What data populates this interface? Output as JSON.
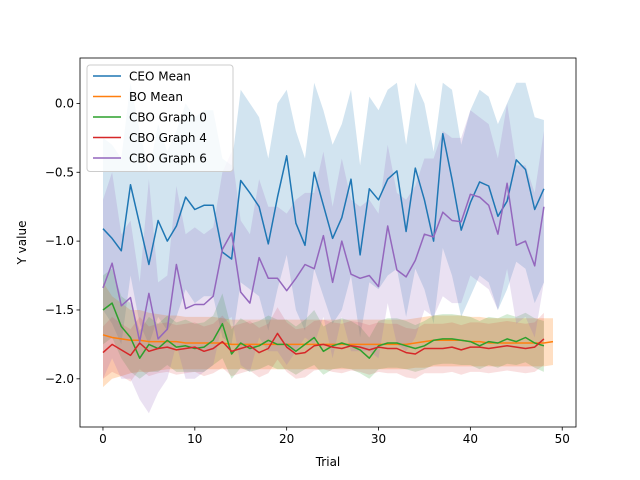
{
  "chart_data": {
    "type": "line",
    "title": "",
    "xlabel": "Trial",
    "ylabel": "Y value",
    "xlim": [
      -2.5,
      51.5
    ],
    "ylim": [
      -2.35,
      0.33
    ],
    "xticks": [
      0,
      10,
      20,
      30,
      40,
      50
    ],
    "yticks": [
      -2.0,
      -1.5,
      -1.0,
      -0.5,
      0.0
    ],
    "xtick_labels": [
      "0",
      "10",
      "20",
      "30",
      "40",
      "50"
    ],
    "ytick_labels": [
      "−2.0",
      "−1.5",
      "−1.0",
      "−0.5",
      "0.0"
    ],
    "grid": false,
    "legend_position": "upper-left",
    "series": [
      {
        "name": "CEO Mean",
        "color": "#1f77b4",
        "band_opacity": 0.2,
        "x": [
          0,
          1,
          2,
          3,
          4,
          5,
          6,
          7,
          8,
          9,
          10,
          11,
          12,
          13,
          14,
          15,
          16,
          17,
          18,
          19,
          20,
          21,
          22,
          23,
          24,
          25,
          26,
          27,
          28,
          29,
          30,
          31,
          32,
          33,
          34,
          35,
          36,
          37,
          38,
          39,
          40,
          41,
          42,
          43,
          44,
          45,
          46,
          47,
          48
        ],
        "y": [
          -0.91,
          -0.98,
          -1.07,
          -0.59,
          -0.88,
          -1.17,
          -0.85,
          -1.0,
          -0.89,
          -0.68,
          -0.77,
          -0.74,
          -0.74,
          -1.08,
          -1.13,
          -0.56,
          -0.65,
          -0.75,
          -1.02,
          -0.68,
          -0.38,
          -0.87,
          -1.03,
          -0.5,
          -0.74,
          -0.98,
          -0.83,
          -0.55,
          -1.1,
          -0.62,
          -0.7,
          -0.55,
          -0.49,
          -0.93,
          -0.47,
          -0.7,
          -1.0,
          -0.22,
          -0.55,
          -0.92,
          -0.72,
          -0.57,
          -0.6,
          -0.82,
          -0.71,
          -0.41,
          -0.48,
          -0.77,
          -0.62
        ],
        "lower": [
          -1.5,
          -1.6,
          -1.75,
          -1.25,
          -1.6,
          -1.75,
          -1.55,
          -1.65,
          -1.55,
          -1.35,
          -1.45,
          -1.4,
          -1.4,
          -1.7,
          -1.75,
          -1.3,
          -1.35,
          -1.4,
          -1.65,
          -1.35,
          -1.1,
          -1.5,
          -1.65,
          -1.2,
          -1.4,
          -1.6,
          -1.5,
          -1.25,
          -1.7,
          -1.3,
          -1.35,
          -1.25,
          -1.2,
          -1.55,
          -1.2,
          -1.35,
          -1.6,
          -1.05,
          -1.25,
          -1.55,
          -1.4,
          -1.25,
          -1.3,
          -1.5,
          -1.35,
          -1.15,
          -1.2,
          -1.45,
          -1.3
        ],
        "upper": [
          -0.25,
          -0.3,
          -0.4,
          0.15,
          -0.2,
          -0.5,
          -0.15,
          -0.35,
          -0.2,
          0.0,
          -0.1,
          -0.05,
          -0.05,
          -0.4,
          -0.45,
          0.1,
          0.0,
          -0.1,
          -0.4,
          0.0,
          0.1,
          -0.2,
          -0.4,
          0.15,
          -0.05,
          -0.3,
          -0.15,
          0.1,
          -0.45,
          0.05,
          -0.05,
          0.1,
          0.15,
          -0.3,
          0.15,
          0.0,
          -0.35,
          0.15,
          0.1,
          -0.3,
          -0.05,
          0.1,
          0.05,
          -0.15,
          0.0,
          0.15,
          0.15,
          -0.1,
          -0.12
        ]
      },
      {
        "name": "BO Mean",
        "color": "#ff7f0e",
        "band_opacity": 0.25,
        "x": [
          0,
          1,
          2,
          3,
          4,
          5,
          6,
          7,
          8,
          9,
          10,
          11,
          12,
          13,
          14,
          15,
          16,
          17,
          18,
          19,
          20,
          21,
          22,
          23,
          24,
          25,
          26,
          27,
          28,
          29,
          30,
          31,
          32,
          33,
          34,
          35,
          36,
          37,
          38,
          39,
          40,
          41,
          42,
          43,
          44,
          45,
          46,
          47,
          48,
          49
        ],
        "y": [
          -1.68,
          -1.7,
          -1.71,
          -1.72,
          -1.72,
          -1.73,
          -1.73,
          -1.73,
          -1.73,
          -1.74,
          -1.74,
          -1.74,
          -1.74,
          -1.74,
          -1.75,
          -1.75,
          -1.75,
          -1.75,
          -1.75,
          -1.75,
          -1.75,
          -1.75,
          -1.75,
          -1.75,
          -1.75,
          -1.75,
          -1.75,
          -1.75,
          -1.75,
          -1.75,
          -1.75,
          -1.75,
          -1.75,
          -1.75,
          -1.74,
          -1.73,
          -1.72,
          -1.72,
          -1.72,
          -1.72,
          -1.73,
          -1.73,
          -1.74,
          -1.74,
          -1.74,
          -1.74,
          -1.74,
          -1.74,
          -1.74,
          -1.73
        ],
        "lower": [
          -2.06,
          -2.0,
          -1.98,
          -1.96,
          -1.95,
          -1.95,
          -1.94,
          -1.93,
          -1.93,
          -1.93,
          -1.93,
          -1.93,
          -1.93,
          -1.93,
          -1.93,
          -1.93,
          -1.93,
          -1.93,
          -1.93,
          -1.93,
          -1.93,
          -1.93,
          -1.93,
          -1.93,
          -1.93,
          -1.93,
          -1.93,
          -1.93,
          -1.93,
          -1.93,
          -1.93,
          -1.93,
          -1.93,
          -1.93,
          -1.92,
          -1.92,
          -1.91,
          -1.91,
          -1.91,
          -1.91,
          -1.91,
          -1.91,
          -1.91,
          -1.91,
          -1.91,
          -1.91,
          -1.91,
          -1.91,
          -1.91,
          -1.9
        ],
        "upper": [
          -1.3,
          -1.4,
          -1.45,
          -1.5,
          -1.5,
          -1.52,
          -1.53,
          -1.54,
          -1.54,
          -1.55,
          -1.55,
          -1.55,
          -1.55,
          -1.56,
          -1.57,
          -1.57,
          -1.57,
          -1.57,
          -1.57,
          -1.57,
          -1.57,
          -1.57,
          -1.57,
          -1.57,
          -1.57,
          -1.57,
          -1.57,
          -1.57,
          -1.57,
          -1.57,
          -1.57,
          -1.57,
          -1.57,
          -1.57,
          -1.56,
          -1.55,
          -1.54,
          -1.54,
          -1.54,
          -1.54,
          -1.55,
          -1.55,
          -1.56,
          -1.56,
          -1.56,
          -1.56,
          -1.56,
          -1.56,
          -1.56,
          -1.56
        ]
      },
      {
        "name": "CBO Graph 0",
        "color": "#2ca02c",
        "band_opacity": 0.2,
        "x": [
          0,
          1,
          2,
          3,
          4,
          5,
          6,
          7,
          8,
          9,
          10,
          11,
          12,
          13,
          14,
          15,
          16,
          17,
          18,
          19,
          20,
          21,
          22,
          23,
          24,
          25,
          26,
          27,
          28,
          29,
          30,
          31,
          32,
          33,
          34,
          35,
          36,
          37,
          38,
          39,
          40,
          41,
          42,
          43,
          44,
          45,
          46,
          47,
          48
        ],
        "y": [
          -1.5,
          -1.45,
          -1.62,
          -1.7,
          -1.85,
          -1.75,
          -1.78,
          -1.72,
          -1.77,
          -1.76,
          -1.78,
          -1.77,
          -1.72,
          -1.6,
          -1.82,
          -1.74,
          -1.78,
          -1.76,
          -1.72,
          -1.75,
          -1.75,
          -1.8,
          -1.75,
          -1.7,
          -1.8,
          -1.76,
          -1.74,
          -1.76,
          -1.79,
          -1.85,
          -1.76,
          -1.74,
          -1.74,
          -1.76,
          -1.78,
          -1.76,
          -1.72,
          -1.71,
          -1.71,
          -1.72,
          -1.73,
          -1.76,
          -1.73,
          -1.74,
          -1.71,
          -1.73,
          -1.7,
          -1.74,
          -1.76
        ],
        "lower": [
          -1.75,
          -1.7,
          -1.85,
          -1.95,
          -2.0,
          -1.95,
          -1.95,
          -1.9,
          -1.95,
          -1.95,
          -1.95,
          -1.95,
          -1.9,
          -1.85,
          -2.0,
          -1.92,
          -1.95,
          -1.93,
          -1.9,
          -1.93,
          -1.93,
          -1.97,
          -1.93,
          -1.9,
          -1.97,
          -1.93,
          -1.92,
          -1.93,
          -1.96,
          -2.0,
          -1.93,
          -1.92,
          -1.92,
          -1.93,
          -1.95,
          -1.93,
          -1.9,
          -1.89,
          -1.89,
          -1.9,
          -1.9,
          -1.93,
          -1.9,
          -1.92,
          -1.89,
          -1.9,
          -1.88,
          -1.92,
          -1.95
        ],
        "upper": [
          -1.25,
          -1.2,
          -1.4,
          -1.45,
          -1.65,
          -1.55,
          -1.6,
          -1.54,
          -1.59,
          -1.57,
          -1.6,
          -1.59,
          -1.54,
          -1.38,
          -1.64,
          -1.56,
          -1.6,
          -1.58,
          -1.54,
          -1.57,
          -1.57,
          -1.62,
          -1.57,
          -1.5,
          -1.62,
          -1.58,
          -1.56,
          -1.58,
          -1.62,
          -1.7,
          -1.58,
          -1.56,
          -1.56,
          -1.58,
          -1.61,
          -1.58,
          -1.54,
          -1.53,
          -1.53,
          -1.54,
          -1.55,
          -1.58,
          -1.55,
          -1.56,
          -1.53,
          -1.55,
          -1.52,
          -1.56,
          -1.58
        ]
      },
      {
        "name": "CBO Graph 4",
        "color": "#d62728",
        "band_opacity": 0.15,
        "x": [
          0,
          1,
          2,
          3,
          4,
          5,
          6,
          7,
          8,
          9,
          10,
          11,
          12,
          13,
          14,
          15,
          16,
          17,
          18,
          19,
          20,
          21,
          22,
          23,
          24,
          25,
          26,
          27,
          28,
          29,
          30,
          31,
          32,
          33,
          34,
          35,
          36,
          37,
          38,
          39,
          40,
          41,
          42,
          43,
          44,
          45,
          46,
          47,
          48
        ],
        "y": [
          -1.81,
          -1.75,
          -1.79,
          -1.83,
          -1.74,
          -1.8,
          -1.78,
          -1.77,
          -1.79,
          -1.78,
          -1.77,
          -1.8,
          -1.78,
          -1.73,
          -1.8,
          -1.78,
          -1.76,
          -1.81,
          -1.78,
          -1.67,
          -1.77,
          -1.82,
          -1.81,
          -1.76,
          -1.75,
          -1.77,
          -1.78,
          -1.76,
          -1.77,
          -1.79,
          -1.77,
          -1.78,
          -1.78,
          -1.81,
          -1.82,
          -1.78,
          -1.78,
          -1.78,
          -1.77,
          -1.79,
          -1.77,
          -1.77,
          -1.78,
          -1.77,
          -1.76,
          -1.77,
          -1.78,
          -1.77,
          -1.71
        ],
        "lower": [
          -2.0,
          -1.95,
          -1.98,
          -2.02,
          -1.93,
          -1.98,
          -1.96,
          -1.95,
          -1.97,
          -1.96,
          -1.95,
          -1.98,
          -1.96,
          -1.92,
          -1.98,
          -1.96,
          -1.94,
          -1.99,
          -1.96,
          -1.86,
          -1.95,
          -2.0,
          -1.99,
          -1.94,
          -1.93,
          -1.95,
          -1.96,
          -1.94,
          -1.95,
          -1.97,
          -1.95,
          -1.96,
          -1.96,
          -1.99,
          -2.0,
          -1.96,
          -1.96,
          -1.96,
          -1.95,
          -1.97,
          -1.95,
          -1.95,
          -1.96,
          -1.95,
          -1.94,
          -1.95,
          -1.96,
          -1.95,
          -1.9
        ],
        "upper": [
          -1.62,
          -1.55,
          -1.6,
          -1.64,
          -1.55,
          -1.62,
          -1.6,
          -1.59,
          -1.61,
          -1.6,
          -1.59,
          -1.62,
          -1.6,
          -1.54,
          -1.62,
          -1.6,
          -1.58,
          -1.63,
          -1.6,
          -1.48,
          -1.59,
          -1.64,
          -1.63,
          -1.58,
          -1.57,
          -1.59,
          -1.6,
          -1.58,
          -1.59,
          -1.61,
          -1.59,
          -1.6,
          -1.6,
          -1.63,
          -1.64,
          -1.6,
          -1.6,
          -1.6,
          -1.59,
          -1.61,
          -1.59,
          -1.59,
          -1.6,
          -1.59,
          -1.58,
          -1.59,
          -1.6,
          -1.59,
          -1.52
        ]
      },
      {
        "name": "CBO Graph 6",
        "color": "#9467bd",
        "band_opacity": 0.2,
        "x": [
          0,
          1,
          2,
          3,
          4,
          5,
          6,
          7,
          8,
          9,
          10,
          11,
          12,
          13,
          14,
          15,
          16,
          17,
          18,
          19,
          20,
          21,
          22,
          23,
          24,
          25,
          26,
          27,
          28,
          29,
          30,
          31,
          32,
          33,
          34,
          35,
          36,
          37,
          38,
          39,
          40,
          41,
          42,
          43,
          44,
          45,
          46,
          47,
          48
        ],
        "y": [
          -1.34,
          -1.16,
          -1.47,
          -1.41,
          -1.73,
          -1.38,
          -1.71,
          -1.64,
          -1.17,
          -1.49,
          -1.46,
          -1.46,
          -1.4,
          -1.06,
          -0.94,
          -1.37,
          -1.45,
          -1.12,
          -1.27,
          -1.27,
          -1.36,
          -1.27,
          -1.17,
          -1.2,
          -0.96,
          -1.3,
          -1.0,
          -1.24,
          -1.27,
          -1.25,
          -1.33,
          -0.89,
          -1.21,
          -1.26,
          -1.14,
          -0.95,
          -0.97,
          -0.79,
          -0.85,
          -0.86,
          -0.66,
          -0.68,
          -0.74,
          -0.95,
          -0.58,
          -1.03,
          -1.0,
          -1.18,
          -0.75
        ],
        "lower": [
          -2.0,
          -1.85,
          -2.0,
          -2.0,
          -2.15,
          -2.25,
          -2.1,
          -2.0,
          -1.75,
          -2.0,
          -2.0,
          -1.95,
          -1.9,
          -1.6,
          -1.55,
          -1.9,
          -1.95,
          -1.7,
          -1.8,
          -1.8,
          -1.9,
          -1.8,
          -1.7,
          -1.75,
          -1.55,
          -1.85,
          -1.55,
          -1.8,
          -1.8,
          -1.8,
          -1.85,
          -1.45,
          -1.75,
          -1.8,
          -1.7,
          -1.5,
          -1.55,
          -1.4,
          -1.45,
          -1.45,
          -1.25,
          -1.3,
          -1.35,
          -1.5,
          -1.2,
          -1.6,
          -1.55,
          -1.7,
          -1.3
        ],
        "upper": [
          -0.7,
          -0.5,
          -0.95,
          -0.85,
          -1.3,
          -0.55,
          -1.3,
          -1.25,
          -0.6,
          -0.95,
          -0.9,
          -0.95,
          -0.9,
          -0.5,
          -0.35,
          -0.85,
          -0.95,
          -0.55,
          -0.75,
          -0.75,
          -0.8,
          -0.7,
          -0.65,
          -0.65,
          -0.35,
          -0.75,
          -0.4,
          -0.7,
          -0.75,
          -0.7,
          -0.8,
          -0.3,
          -0.65,
          -0.7,
          -0.6,
          -0.4,
          -0.4,
          -0.2,
          -0.25,
          -0.25,
          -0.05,
          -0.1,
          -0.15,
          -0.4,
          0.0,
          -0.45,
          -0.45,
          -0.65,
          -0.2
        ]
      }
    ]
  }
}
